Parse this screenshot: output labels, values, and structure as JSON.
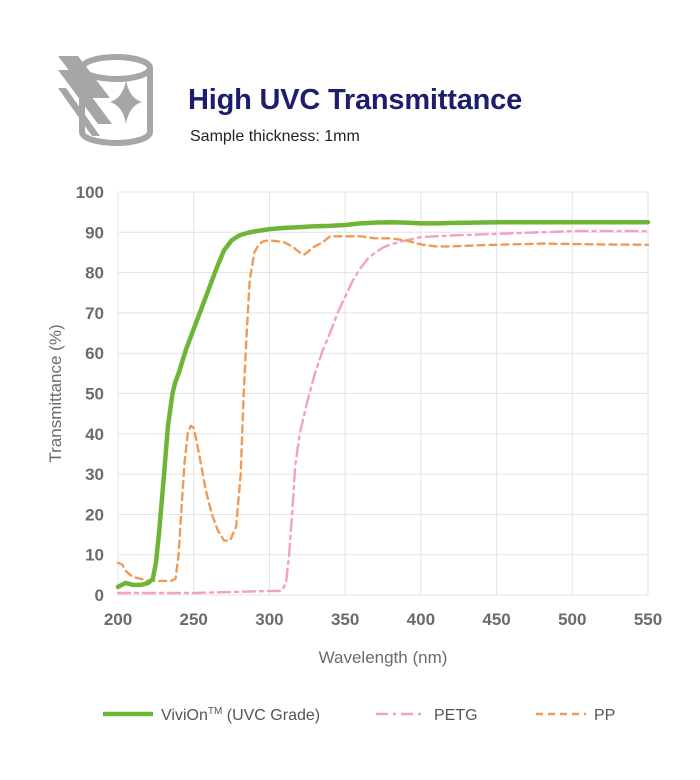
{
  "header": {
    "title": "High UVC Transmittance",
    "subtitle": "Sample thickness: 1mm",
    "icon": "uvc-cylinder-sparkle-icon"
  },
  "colors": {
    "title": "#1b1f6b",
    "axis_text": "#6b6b6b",
    "grid": "#e3e3e3",
    "icon": "#a6a6a6"
  },
  "legend": {
    "placement": "bottom",
    "items": [
      {
        "label_main": "ViviOn",
        "label_sup": "TM",
        "label_tail": " (UVC Grade)"
      },
      {
        "label_main": "PETG"
      },
      {
        "label_main": "PP"
      }
    ]
  },
  "chart_data": {
    "type": "line",
    "title": "High UVC Transmittance",
    "subtitle": "Sample thickness: 1mm",
    "xlabel": "Wavelength (nm)",
    "ylabel": "Transmittance (%)",
    "xlim": [
      200,
      550
    ],
    "ylim": [
      0,
      100
    ],
    "grid": true,
    "xticks": [
      "200",
      "250",
      "300",
      "350",
      "400",
      "450",
      "500",
      "550"
    ],
    "yticks": [
      "0",
      "10",
      "20",
      "30",
      "40",
      "50",
      "60",
      "70",
      "80",
      "90",
      "100"
    ],
    "series": [
      {
        "name": "ViviOn™ (UVC Grade)",
        "color": "#6fb535",
        "dash": "solid",
        "x": [
          200,
          205,
          210,
          215,
          220,
          223,
          225,
          227,
          230,
          233,
          236,
          238,
          240,
          245,
          250,
          255,
          260,
          265,
          270,
          275,
          280,
          285,
          290,
          300,
          310,
          320,
          330,
          340,
          350,
          360,
          370,
          380,
          390,
          400,
          410,
          420,
          450,
          500,
          550
        ],
        "y": [
          2,
          3,
          2.5,
          2.5,
          3,
          4,
          8,
          15,
          28,
          42,
          50,
          53,
          55,
          61,
          66,
          71,
          76,
          81,
          85.5,
          88,
          89.2,
          89.8,
          90.2,
          90.8,
          91.1,
          91.3,
          91.5,
          91.6,
          91.8,
          92.2,
          92.4,
          92.5,
          92.4,
          92.2,
          92.2,
          92.3,
          92.5,
          92.5,
          92.5
        ]
      },
      {
        "name": "PETG",
        "color": "#f2a1c6",
        "dash": "dashdot",
        "x": [
          200,
          250,
          300,
          308,
          311,
          313,
          315,
          317,
          320,
          325,
          330,
          335,
          340,
          345,
          350,
          355,
          360,
          365,
          370,
          375,
          380,
          390,
          400,
          420,
          450,
          500,
          550
        ],
        "y": [
          0.5,
          0.5,
          1,
          1,
          3,
          10,
          20,
          32,
          40,
          48,
          55,
          60.5,
          65,
          70,
          74,
          78,
          81,
          83.5,
          85,
          86.2,
          87,
          88,
          88.8,
          89.2,
          89.6,
          90.3,
          90.3
        ]
      },
      {
        "name": "PP",
        "color": "#f09a55",
        "dash": "dashed",
        "x": [
          200,
          203,
          205,
          208,
          210,
          215,
          220,
          225,
          230,
          235,
          238,
          240,
          242,
          244,
          246,
          248,
          250,
          252,
          255,
          258,
          262,
          266,
          270,
          274,
          278,
          281,
          283,
          285,
          287,
          290,
          293,
          296,
          300,
          305,
          310,
          315,
          320,
          323,
          325,
          328,
          330,
          335,
          340,
          345,
          350,
          360,
          370,
          380,
          390,
          400,
          410,
          420,
          440,
          460,
          480,
          500,
          520,
          550
        ],
        "y": [
          8,
          7.5,
          6,
          5,
          4.5,
          4,
          3.5,
          3.5,
          3.5,
          3.5,
          4,
          10,
          22,
          33,
          40,
          42,
          41.5,
          38,
          32,
          26,
          20,
          16,
          13.5,
          13.5,
          17,
          30,
          50,
          65,
          78,
          85,
          87,
          87.8,
          88,
          87.8,
          87.5,
          86.5,
          85,
          84.5,
          85,
          86,
          86.5,
          87.5,
          89,
          89,
          89,
          89,
          88.5,
          88.5,
          88,
          87,
          86.5,
          86.5,
          86.8,
          87,
          87.2,
          87.1,
          87,
          86.9
        ]
      }
    ]
  }
}
